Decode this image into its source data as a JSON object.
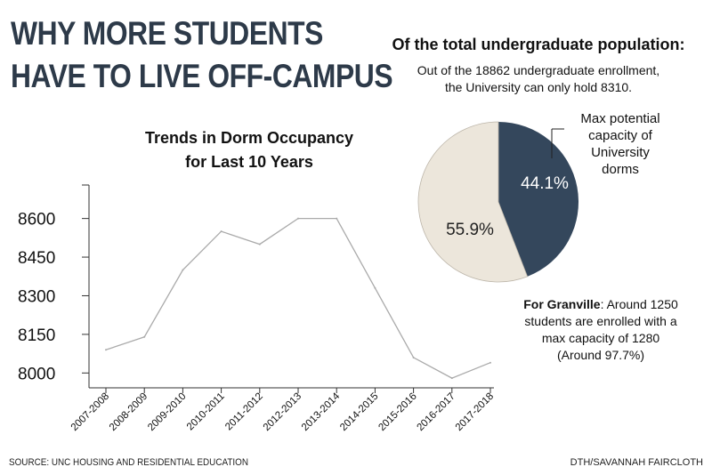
{
  "headline": {
    "line1": "WHY MORE STUDENTS",
    "line2": "HAVE TO LIVE OFF-CAMPUS"
  },
  "pie": {
    "heading": "Of the total undergraduate population:",
    "subtitle_line1": "Out of the 18862 undergraduate enrollment,",
    "subtitle_line2": "the University can only hold 8310.",
    "callout_lines": [
      "Max potential",
      "capacity of",
      "University",
      "dorms"
    ]
  },
  "line_chart": {
    "title_line1": "Trends in Dorm Occupancy",
    "title_line2": "for Last 10 Years"
  },
  "granville": {
    "label": "For Granville",
    "text_line1": ": Around 1250",
    "text_line2": "students are enrolled with a",
    "text_line3": "max capacity of 1280",
    "text_line4": "(Around 97.7%)"
  },
  "footer": {
    "source": "SOURCE: UNC HOUSING AND RESIDENTIAL EDUCATION",
    "credit": "DTH/SAVANNAH FAIRCLOTH"
  },
  "colors": {
    "headline": "#2d3a49",
    "pie_dark": "#34475c",
    "pie_light": "#ece6db",
    "line": "#aaaaaa"
  },
  "chart_data": [
    {
      "type": "line",
      "title": "Trends in Dorm Occupancy for Last 10 Years",
      "xlabel": "",
      "ylabel": "",
      "categories": [
        "2007-2008",
        "2008-2009",
        "2009-2010",
        "2010-2011",
        "2011-2012",
        "2012-2013",
        "2013-2014",
        "2014-2015",
        "2015-2016",
        "2016-2017",
        "2017-2018"
      ],
      "x_ticks": [
        "2007-2008",
        "2008-2009",
        "2009-2010",
        "2010-2011",
        "2011-2012",
        "2012-2013",
        "2013-2014",
        "2014-2015",
        "2015-2016",
        "2016-2017",
        "2017-2018"
      ],
      "values": [
        8090,
        8140,
        8400,
        8550,
        8500,
        8600,
        8600,
        8330,
        8060,
        7980,
        8040
      ],
      "y_ticks": [
        "8000",
        "8150",
        "8300",
        "8450",
        "8600"
      ],
      "y_tick_values": [
        8000,
        8150,
        8300,
        8450,
        8600
      ],
      "ylim": [
        7970,
        8730
      ],
      "grid": false
    },
    {
      "type": "pie",
      "title": "Of the total undergraduate population:",
      "slices": [
        {
          "value": 44.1,
          "label": "44.1%",
          "color": "#34475c"
        },
        {
          "value": 55.9,
          "label": "55.9%",
          "color": "#ece6db"
        }
      ]
    }
  ]
}
